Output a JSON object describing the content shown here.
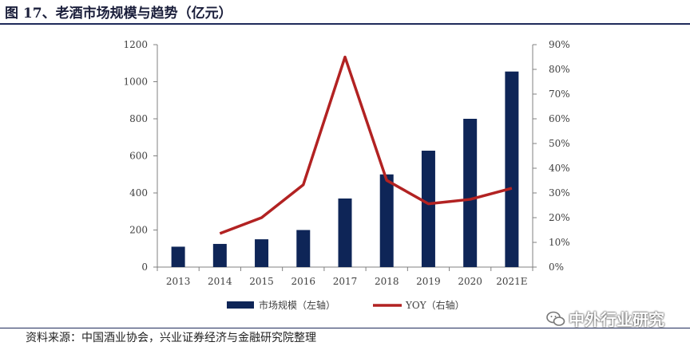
{
  "figure": {
    "title": "图 17、老酒市场规模与趋势（亿元）",
    "source": "资料来源：中国酒业协会，兴业证券经济与金融研究院整理",
    "watermark": "中外行业研究"
  },
  "chart_data": {
    "type": "bar",
    "categories": [
      "2013",
      "2014",
      "2015",
      "2016",
      "2017",
      "2018",
      "2019",
      "2020",
      "2021E"
    ],
    "series": [
      {
        "name": "市场规模（左轴）",
        "type": "bar",
        "axis": "left",
        "values": [
          110,
          125,
          150,
          200,
          370,
          500,
          628,
          800,
          1055
        ]
      },
      {
        "name": "YOY（右轴）",
        "type": "line",
        "axis": "right",
        "unit": "%",
        "values": [
          null,
          13.6,
          20,
          33.3,
          85,
          35.1,
          25.6,
          27.4,
          31.9
        ]
      }
    ],
    "ylim_left": [
      0,
      1200
    ],
    "yticks_left": [
      "0",
      "200",
      "400",
      "600",
      "800",
      "1000",
      "1200"
    ],
    "ylim_right": [
      0,
      90
    ],
    "yticks_right": [
      "0%",
      "10%",
      "20%",
      "30%",
      "40%",
      "50%",
      "60%",
      "70%",
      "80%",
      "90%"
    ],
    "colors": {
      "bar": "#0e2557",
      "line": "#b22222"
    },
    "grid": false,
    "legend_position": "bottom"
  }
}
